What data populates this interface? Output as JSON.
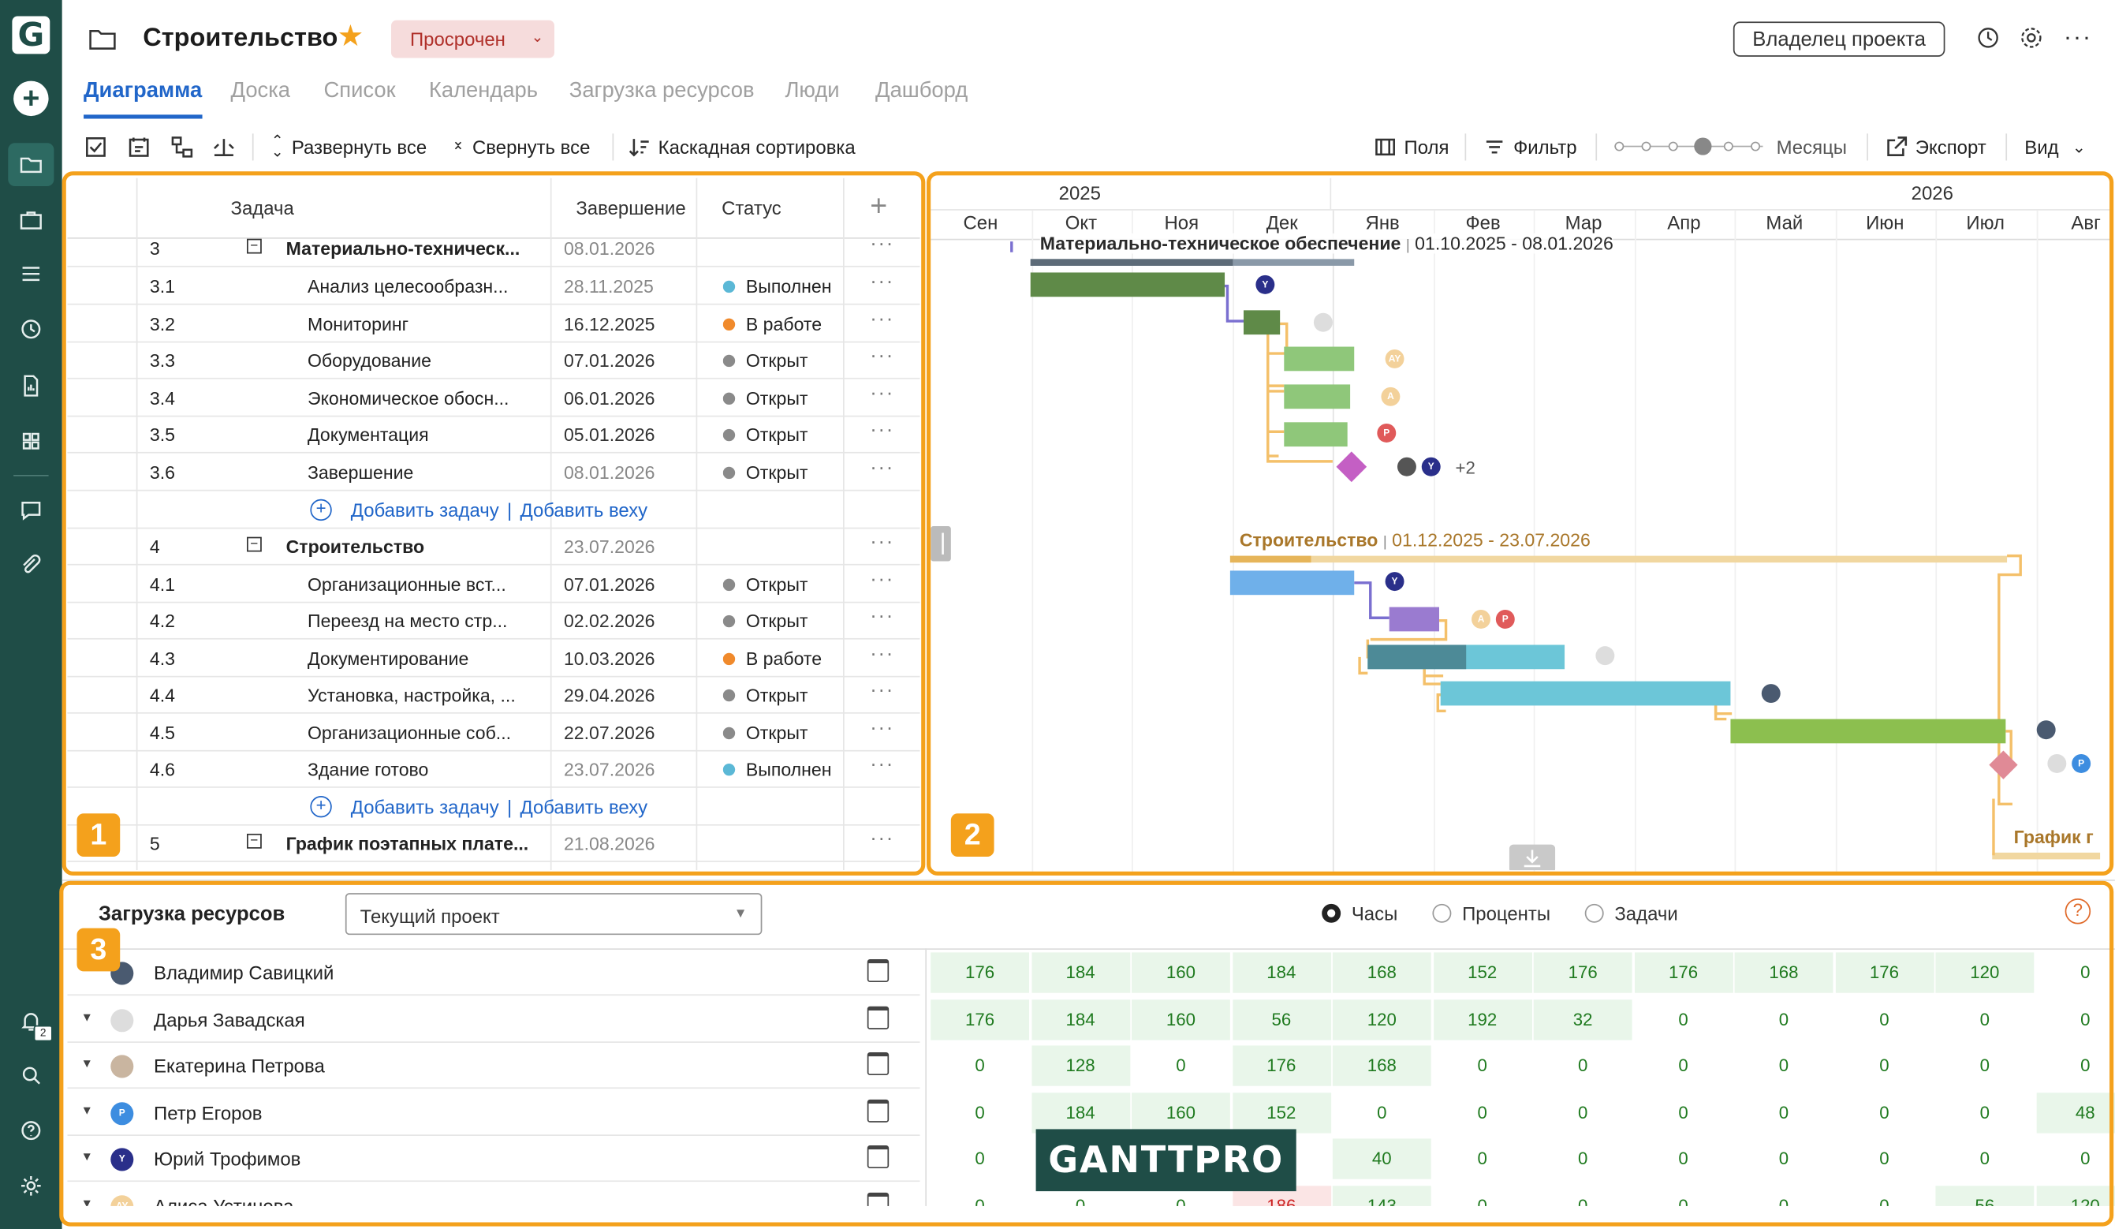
{
  "app": {
    "logo": "G"
  },
  "project": {
    "title": "Строительство",
    "status": "Просрочен",
    "owner_button": "Владелец проекта"
  },
  "tabs": [
    "Диаграмма",
    "Доска",
    "Список",
    "Календарь",
    "Загрузка ресурсов",
    "Люди",
    "Дашборд"
  ],
  "toolbar": {
    "expand_all": "Развернуть все",
    "collapse_all": "Свернуть все",
    "cascade_sort": "Каскадная сортировка",
    "fields": "Поля",
    "filter": "Фильтр",
    "zoom_level": "Месяцы",
    "export": "Экспорт",
    "view": "Вид"
  },
  "grid": {
    "headers": {
      "task": "Задача",
      "end": "Завершение",
      "status": "Статус",
      "add": "+"
    },
    "rows": [
      {
        "num": "3",
        "name": "Материально-техническ...",
        "end": "08.01.2026",
        "status": "",
        "group": true
      },
      {
        "num": "3.1",
        "name": "Анализ целесообразн...",
        "end": "28.11.2025",
        "status": "Выполнен"
      },
      {
        "num": "3.2",
        "name": "Мониторинг",
        "end": "16.12.2025",
        "status": "В работе"
      },
      {
        "num": "3.3",
        "name": "Оборудование",
        "end": "07.01.2026",
        "status": "Открыт"
      },
      {
        "num": "3.4",
        "name": "Экономическое обосн...",
        "end": "06.01.2026",
        "status": "Открыт"
      },
      {
        "num": "3.5",
        "name": "Документация",
        "end": "05.01.2026",
        "status": "Открыт"
      },
      {
        "num": "3.6",
        "name": "Завершение",
        "end": "08.01.2026",
        "status": "Открыт"
      },
      {
        "num": "4",
        "name": "Строительство",
        "end": "23.07.2026",
        "status": "",
        "group": true
      },
      {
        "num": "4.1",
        "name": "Организационные вст...",
        "end": "07.01.2026",
        "status": "Открыт"
      },
      {
        "num": "4.2",
        "name": "Переезд на место стр...",
        "end": "02.02.2026",
        "status": "Открыт"
      },
      {
        "num": "4.3",
        "name": "Документирование",
        "end": "10.03.2026",
        "status": "В работе"
      },
      {
        "num": "4.4",
        "name": "Установка, настройка, ...",
        "end": "29.04.2026",
        "status": "Открыт"
      },
      {
        "num": "4.5",
        "name": "Организационные соб...",
        "end": "22.07.2026",
        "status": "Открыт"
      },
      {
        "num": "4.6",
        "name": "Здание готово",
        "end": "23.07.2026",
        "status": "Выполнен"
      },
      {
        "num": "5",
        "name": "График поэтапных плате...",
        "end": "21.08.2026",
        "status": "",
        "group": true
      }
    ],
    "add_task": "Добавить задачу",
    "add_milestone": "Добавить веху",
    "separator": "|",
    "more": "···"
  },
  "status_colors": {
    "Выполнен": "#5bb8d6",
    "В работе": "#f08a2c",
    "Открыт": "#8a8a8a"
  },
  "gantt": {
    "years": [
      "2025",
      "2026"
    ],
    "months": [
      "Сен",
      "Окт",
      "Ноя",
      "Дек",
      "Янв",
      "Фев",
      "Мар",
      "Апр",
      "Май",
      "Июн",
      "Июл",
      "Авг"
    ],
    "group3_label": "Материально-техническое обеспечение",
    "group3_dates": "01.10.2025 - 08.01.2026",
    "group3_sep": "|",
    "group4_label": "Строительство",
    "group4_dates": "01.12.2025 - 23.07.2026",
    "group4_sep": "|",
    "group5_label": "График г",
    "more_avatars": "+2"
  },
  "resources": {
    "title": "Загрузка ресурсов",
    "project_select": "Текущий проект",
    "modes": [
      "Часы",
      "Проценты",
      "Задачи"
    ],
    "help": "?",
    "people": [
      {
        "name": "Владимир Савицкий",
        "hours": [
          "176",
          "184",
          "160",
          "184",
          "168",
          "152",
          "176",
          "176",
          "168",
          "176",
          "120",
          "0"
        ]
      },
      {
        "name": "Дарья Завадская",
        "hours": [
          "176",
          "184",
          "160",
          "56",
          "120",
          "192",
          "32",
          "0",
          "0",
          "0",
          "0",
          "0"
        ]
      },
      {
        "name": "Екатерина Петрова",
        "hours": [
          "0",
          "128",
          "0",
          "176",
          "168",
          "0",
          "0",
          "0",
          "0",
          "0",
          "0",
          "0"
        ]
      },
      {
        "name": "Петр Егоров",
        "hours": [
          "0",
          "184",
          "160",
          "152",
          "0",
          "0",
          "0",
          "0",
          "0",
          "0",
          "0",
          "48"
        ]
      },
      {
        "name": "Юрий Трофимов",
        "hours": [
          "0",
          "",
          "",
          "",
          "40",
          "0",
          "0",
          "0",
          "0",
          "0",
          "0",
          "0"
        ]
      },
      {
        "name": "Алиса Устинова",
        "hours": [
          "0",
          "0",
          "0",
          "186",
          "143",
          "0",
          "0",
          "0",
          "0",
          "0",
          "56",
          "120"
        ]
      }
    ]
  },
  "watermark": "GANTTPRO",
  "panels": [
    "1",
    "2",
    "3"
  ],
  "notifications_count": "2"
}
